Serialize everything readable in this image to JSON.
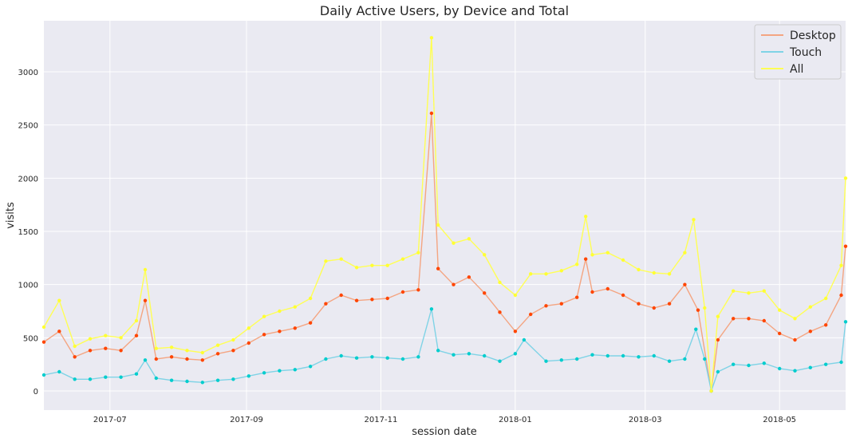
{
  "chart_data": {
    "type": "line",
    "title": "Daily Active Users, by Device and Total",
    "xlabel": "session date",
    "ylabel": "visits",
    "x_range": [
      "2017-06-01",
      "2018-05-31"
    ],
    "ylim": [
      -180,
      3480
    ],
    "x_ticks": [
      {
        "date": "2017-07-01",
        "label": "2017-07"
      },
      {
        "date": "2017-09-01",
        "label": "2017-09"
      },
      {
        "date": "2017-11-01",
        "label": "2017-11"
      },
      {
        "date": "2018-01-01",
        "label": "2018-01"
      },
      {
        "date": "2018-03-01",
        "label": "2018-03"
      },
      {
        "date": "2018-05-01",
        "label": "2018-05"
      }
    ],
    "y_ticks": [
      0,
      500,
      1000,
      1500,
      2000,
      2500,
      3000
    ],
    "grid": true,
    "legend_position": "top-right",
    "series": [
      {
        "name": "Desktop",
        "color": "#f4a582",
        "marker_color": "#ff4500",
        "points": [
          [
            "2017-06-01",
            460
          ],
          [
            "2017-06-08",
            560
          ],
          [
            "2017-06-15",
            320
          ],
          [
            "2017-06-22",
            380
          ],
          [
            "2017-06-29",
            400
          ],
          [
            "2017-07-06",
            380
          ],
          [
            "2017-07-13",
            520
          ],
          [
            "2017-07-17",
            850
          ],
          [
            "2017-07-22",
            300
          ],
          [
            "2017-07-29",
            320
          ],
          [
            "2017-08-05",
            300
          ],
          [
            "2017-08-12",
            290
          ],
          [
            "2017-08-19",
            350
          ],
          [
            "2017-08-26",
            380
          ],
          [
            "2017-09-02",
            450
          ],
          [
            "2017-09-09",
            530
          ],
          [
            "2017-09-16",
            560
          ],
          [
            "2017-09-23",
            590
          ],
          [
            "2017-09-30",
            640
          ],
          [
            "2017-10-07",
            820
          ],
          [
            "2017-10-14",
            900
          ],
          [
            "2017-10-21",
            850
          ],
          [
            "2017-10-28",
            860
          ],
          [
            "2017-11-04",
            870
          ],
          [
            "2017-11-11",
            930
          ],
          [
            "2017-11-18",
            950
          ],
          [
            "2017-11-24",
            2610
          ],
          [
            "2017-11-27",
            1150
          ],
          [
            "2017-12-04",
            1000
          ],
          [
            "2017-12-11",
            1070
          ],
          [
            "2017-12-18",
            920
          ],
          [
            "2017-12-25",
            740
          ],
          [
            "2018-01-01",
            560
          ],
          [
            "2018-01-08",
            720
          ],
          [
            "2018-01-15",
            800
          ],
          [
            "2018-01-22",
            820
          ],
          [
            "2018-01-29",
            880
          ],
          [
            "2018-02-02",
            1240
          ],
          [
            "2018-02-05",
            930
          ],
          [
            "2018-02-12",
            960
          ],
          [
            "2018-02-19",
            900
          ],
          [
            "2018-02-26",
            820
          ],
          [
            "2018-03-05",
            780
          ],
          [
            "2018-03-12",
            820
          ],
          [
            "2018-03-19",
            1000
          ],
          [
            "2018-03-25",
            760
          ],
          [
            "2018-03-31",
            0
          ],
          [
            "2018-04-03",
            480
          ],
          [
            "2018-04-10",
            680
          ],
          [
            "2018-04-17",
            680
          ],
          [
            "2018-04-24",
            660
          ],
          [
            "2018-05-01",
            540
          ],
          [
            "2018-05-08",
            480
          ],
          [
            "2018-05-15",
            560
          ],
          [
            "2018-05-22",
            620
          ],
          [
            "2018-05-29",
            900
          ],
          [
            "2018-05-31",
            1360
          ]
        ]
      },
      {
        "name": "Touch",
        "color": "#7fd3e6",
        "marker_color": "#00cdcd",
        "points": [
          [
            "2017-06-01",
            150
          ],
          [
            "2017-06-08",
            180
          ],
          [
            "2017-06-15",
            110
          ],
          [
            "2017-06-22",
            110
          ],
          [
            "2017-06-29",
            130
          ],
          [
            "2017-07-06",
            130
          ],
          [
            "2017-07-13",
            160
          ],
          [
            "2017-07-17",
            290
          ],
          [
            "2017-07-22",
            120
          ],
          [
            "2017-07-29",
            100
          ],
          [
            "2017-08-05",
            90
          ],
          [
            "2017-08-12",
            80
          ],
          [
            "2017-08-19",
            100
          ],
          [
            "2017-08-26",
            110
          ],
          [
            "2017-09-02",
            140
          ],
          [
            "2017-09-09",
            170
          ],
          [
            "2017-09-16",
            190
          ],
          [
            "2017-09-23",
            200
          ],
          [
            "2017-09-30",
            230
          ],
          [
            "2017-10-07",
            300
          ],
          [
            "2017-10-14",
            330
          ],
          [
            "2017-10-21",
            310
          ],
          [
            "2017-10-28",
            320
          ],
          [
            "2017-11-04",
            310
          ],
          [
            "2017-11-11",
            300
          ],
          [
            "2017-11-18",
            320
          ],
          [
            "2017-11-24",
            770
          ],
          [
            "2017-11-27",
            380
          ],
          [
            "2017-12-04",
            340
          ],
          [
            "2017-12-11",
            350
          ],
          [
            "2017-12-18",
            330
          ],
          [
            "2017-12-25",
            280
          ],
          [
            "2018-01-01",
            350
          ],
          [
            "2018-01-05",
            480
          ],
          [
            "2018-01-15",
            280
          ],
          [
            "2018-01-22",
            290
          ],
          [
            "2018-01-29",
            300
          ],
          [
            "2018-02-05",
            340
          ],
          [
            "2018-02-12",
            330
          ],
          [
            "2018-02-19",
            330
          ],
          [
            "2018-02-26",
            320
          ],
          [
            "2018-03-05",
            330
          ],
          [
            "2018-03-12",
            280
          ],
          [
            "2018-03-19",
            300
          ],
          [
            "2018-03-24",
            580
          ],
          [
            "2018-03-28",
            300
          ],
          [
            "2018-03-31",
            0
          ],
          [
            "2018-04-03",
            180
          ],
          [
            "2018-04-10",
            250
          ],
          [
            "2018-04-17",
            240
          ],
          [
            "2018-04-24",
            260
          ],
          [
            "2018-05-01",
            210
          ],
          [
            "2018-05-08",
            190
          ],
          [
            "2018-05-15",
            220
          ],
          [
            "2018-05-22",
            250
          ],
          [
            "2018-05-29",
            270
          ],
          [
            "2018-05-31",
            650
          ]
        ]
      },
      {
        "name": "All",
        "color": "#ffff55",
        "marker_color": "#ffff33",
        "points": [
          [
            "2017-06-01",
            600
          ],
          [
            "2017-06-08",
            850
          ],
          [
            "2017-06-15",
            420
          ],
          [
            "2017-06-22",
            490
          ],
          [
            "2017-06-29",
            520
          ],
          [
            "2017-07-06",
            500
          ],
          [
            "2017-07-13",
            660
          ],
          [
            "2017-07-17",
            1140
          ],
          [
            "2017-07-22",
            400
          ],
          [
            "2017-07-29",
            410
          ],
          [
            "2017-08-05",
            380
          ],
          [
            "2017-08-12",
            360
          ],
          [
            "2017-08-19",
            430
          ],
          [
            "2017-08-26",
            480
          ],
          [
            "2017-09-02",
            590
          ],
          [
            "2017-09-09",
            700
          ],
          [
            "2017-09-16",
            750
          ],
          [
            "2017-09-23",
            790
          ],
          [
            "2017-09-30",
            870
          ],
          [
            "2017-10-07",
            1220
          ],
          [
            "2017-10-14",
            1240
          ],
          [
            "2017-10-21",
            1160
          ],
          [
            "2017-10-28",
            1180
          ],
          [
            "2017-11-04",
            1180
          ],
          [
            "2017-11-11",
            1240
          ],
          [
            "2017-11-18",
            1300
          ],
          [
            "2017-11-24",
            3320
          ],
          [
            "2017-11-27",
            1560
          ],
          [
            "2017-12-04",
            1390
          ],
          [
            "2017-12-11",
            1430
          ],
          [
            "2017-12-18",
            1280
          ],
          [
            "2017-12-25",
            1020
          ],
          [
            "2018-01-01",
            900
          ],
          [
            "2018-01-08",
            1100
          ],
          [
            "2018-01-15",
            1100
          ],
          [
            "2018-01-22",
            1130
          ],
          [
            "2018-01-29",
            1190
          ],
          [
            "2018-02-02",
            1640
          ],
          [
            "2018-02-05",
            1280
          ],
          [
            "2018-02-12",
            1300
          ],
          [
            "2018-02-19",
            1230
          ],
          [
            "2018-02-26",
            1140
          ],
          [
            "2018-03-05",
            1110
          ],
          [
            "2018-03-12",
            1100
          ],
          [
            "2018-03-19",
            1300
          ],
          [
            "2018-03-23",
            1610
          ],
          [
            "2018-03-28",
            780
          ],
          [
            "2018-03-31",
            0
          ],
          [
            "2018-04-03",
            700
          ],
          [
            "2018-04-10",
            940
          ],
          [
            "2018-04-17",
            920
          ],
          [
            "2018-04-24",
            940
          ],
          [
            "2018-05-01",
            760
          ],
          [
            "2018-05-08",
            680
          ],
          [
            "2018-05-15",
            790
          ],
          [
            "2018-05-22",
            870
          ],
          [
            "2018-05-29",
            1180
          ],
          [
            "2018-05-31",
            2000
          ]
        ]
      }
    ]
  }
}
